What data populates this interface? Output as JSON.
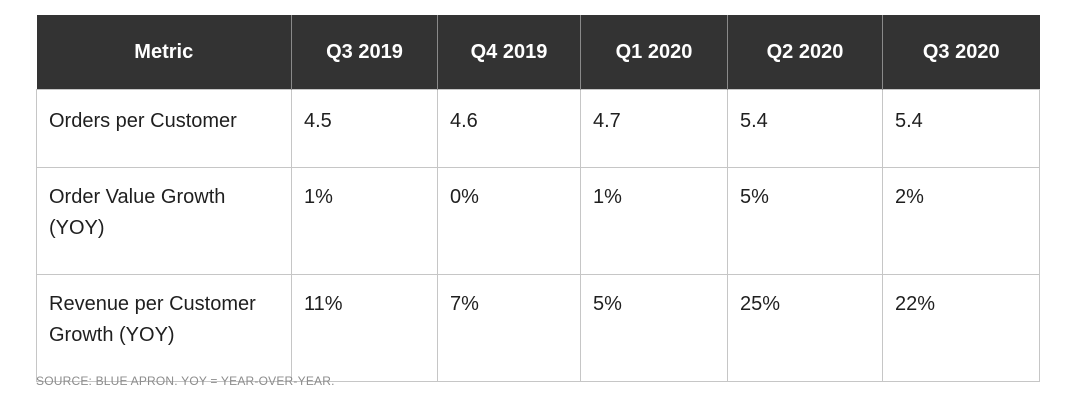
{
  "table": {
    "headers": [
      "Metric",
      "Q3 2019",
      "Q4 2019",
      "Q1 2020",
      "Q2 2020",
      "Q3 2020"
    ],
    "rows": [
      {
        "metric_lines": [
          "Orders per Customer"
        ],
        "values": [
          "4.5",
          "4.6",
          "4.7",
          "5.4",
          "5.4"
        ]
      },
      {
        "metric_lines": [
          "Order Value Growth",
          "(YOY)"
        ],
        "values": [
          "1%",
          "0%",
          "1%",
          "5%",
          "2%"
        ]
      },
      {
        "metric_lines": [
          "Revenue per Customer",
          "Growth (YOY)"
        ],
        "values": [
          "11%",
          "7%",
          "5%",
          "25%",
          "22%"
        ]
      }
    ]
  },
  "source_note": "SOURCE: BLUE APRON. YOY = YEAR-OVER-YEAR.",
  "colors": {
    "header_background": "#333333",
    "header_text": "#ffffff",
    "grid": "#c6c6c6",
    "body_text": "#1f1f1f",
    "source_text": "#8c8c8c"
  }
}
